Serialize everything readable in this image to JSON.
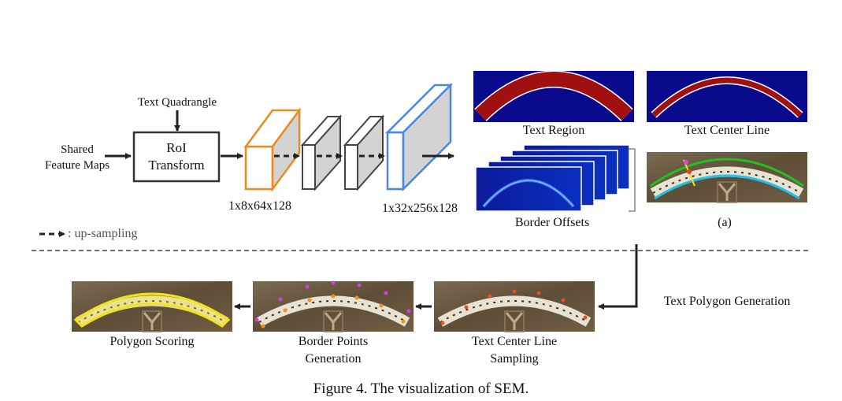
{
  "inputs": {
    "text_quadrangle": "Text Quadrangle",
    "shared_feature_maps_line1": "Shared",
    "shared_feature_maps_line2": "Feature Maps"
  },
  "roi": {
    "line1": "RoI",
    "line2": "Transform"
  },
  "dims": {
    "small": "1x8x64x128",
    "large": "1x32x256x128"
  },
  "outputs": {
    "text_region": "Text Region",
    "text_center_line": "Text Center Line",
    "border_offsets": "Border Offsets",
    "subfig_a": "(a)"
  },
  "legend": {
    "upsampling": ": up-sampling"
  },
  "pipeline": {
    "text_polygon_generation": "Text Polygon Generation",
    "tcl_sampling_line1": "Text Center Line",
    "tcl_sampling_line2": "Sampling",
    "border_points_line1": "Border Points",
    "border_points_line2": "Generation",
    "polygon_scoring": "Polygon Scoring"
  },
  "caption": "Figure 4. The visualization of SEM.",
  "colors": {
    "orange_block": "#ef8a1d",
    "blue_block": "#4a86e8",
    "map_background": "#0a0a8c",
    "region_fill": "#a01010",
    "photo_background": "#6b5a40",
    "green_border": "#22c022",
    "cyan_border": "#20c0e8",
    "yellow_polygon": "#f2e21a"
  }
}
